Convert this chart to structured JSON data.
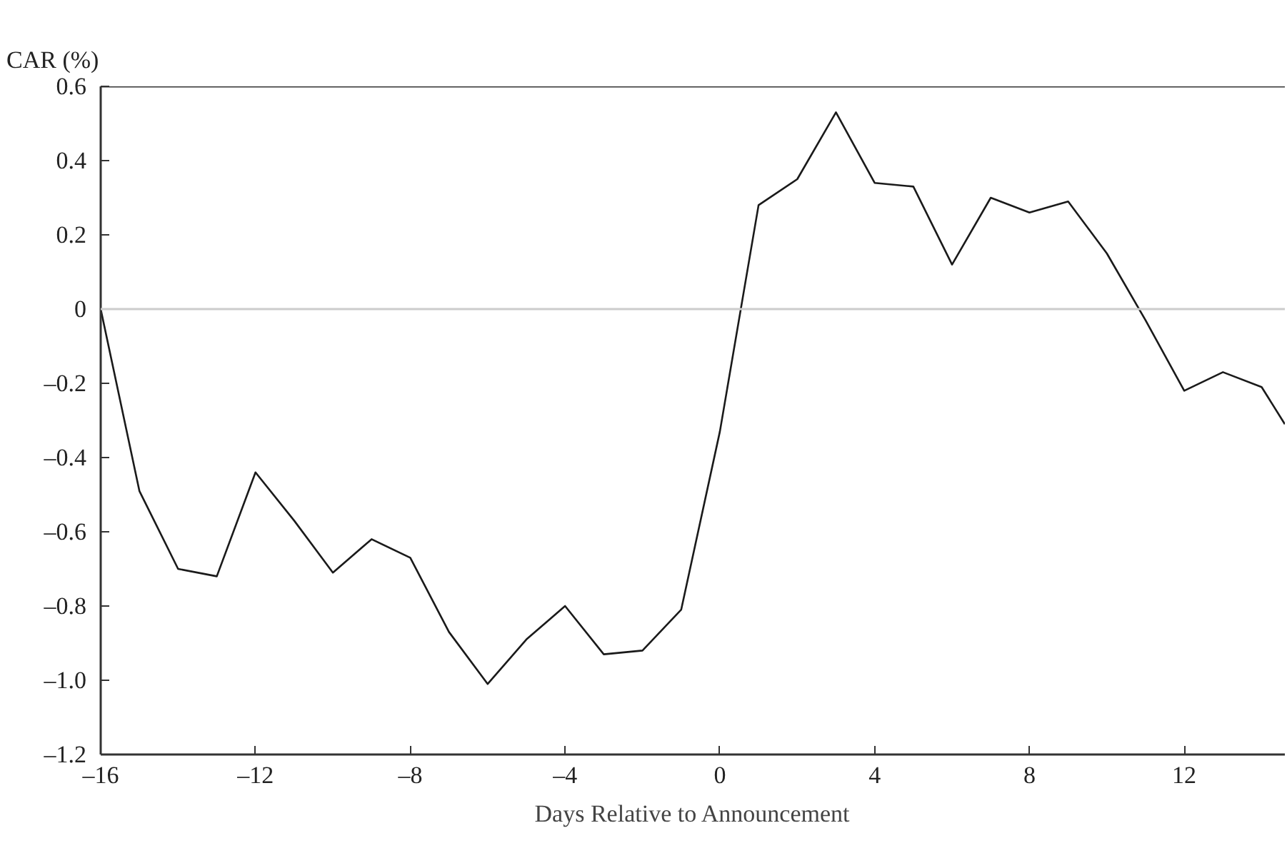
{
  "chart_data": {
    "type": "line",
    "xlabel": "Days Relative to Announcement",
    "ylabel": "CAR (%)",
    "x": [
      -16,
      -15,
      -14,
      -13,
      -12,
      -11,
      -10,
      -9,
      -8,
      -7,
      -6,
      -5,
      -4,
      -3,
      -2,
      -1,
      0,
      1,
      2,
      3,
      4,
      5,
      6,
      7,
      8,
      9,
      10,
      11,
      12,
      13,
      14,
      14.6
    ],
    "series": [
      {
        "color": "#1a1a1a",
        "values": [
          0,
          -0.49,
          -0.7,
          -0.72,
          -0.44,
          -0.57,
          -0.71,
          -0.62,
          -0.67,
          -0.87,
          -1.01,
          -0.89,
          -0.8,
          -0.93,
          -0.92,
          -0.81,
          -0.33,
          0.28,
          0.35,
          0.53,
          0.34,
          0.33,
          0.12,
          0.3,
          0.26,
          0.29,
          0.15,
          -0.03,
          -0.22,
          -0.17,
          -0.21,
          -0.31
        ]
      }
    ],
    "xlim": [
      -16,
      14.6
    ],
    "xticks": [
      {
        "value": -16,
        "label": "–16"
      },
      {
        "value": -12,
        "label": "–12"
      },
      {
        "value": -8,
        "label": "–8"
      },
      {
        "value": -4,
        "label": "–4"
      },
      0,
      4,
      8,
      12
    ],
    "ylim": [
      -1.2,
      0.6
    ],
    "yticks": [
      {
        "value": -1.2,
        "label": "–1.2"
      },
      {
        "value": -1.0,
        "label": "–1.0"
      },
      {
        "value": -0.8,
        "label": "–0.8"
      },
      {
        "value": -0.6,
        "label": "–0.6"
      },
      {
        "value": -0.4,
        "label": "–0.4"
      },
      {
        "value": -0.2,
        "label": "–0.2"
      },
      0,
      0.2,
      0.4,
      0.6
    ],
    "ref_lines": [
      {
        "axis": "y",
        "value": 0,
        "color": "#cccccc"
      }
    ],
    "grid": false,
    "marker": "none",
    "line_style": "solid"
  }
}
